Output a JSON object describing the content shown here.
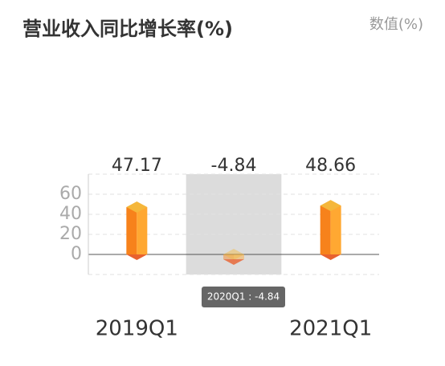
{
  "chart_data": {
    "type": "bar3d",
    "title": "营业收入同比增长率(%)",
    "unit_label": "数值(%)",
    "categories": [
      "2019Q1",
      null,
      "2021Q1"
    ],
    "values": [
      47.17,
      -4.84,
      48.66
    ],
    "color": "#f7821b",
    "ylim": [
      -20,
      80
    ],
    "yticks": [
      0,
      20,
      40,
      60
    ],
    "grid": true,
    "highlight": 1,
    "tooltip": "2020Q1 : -4.84"
  }
}
